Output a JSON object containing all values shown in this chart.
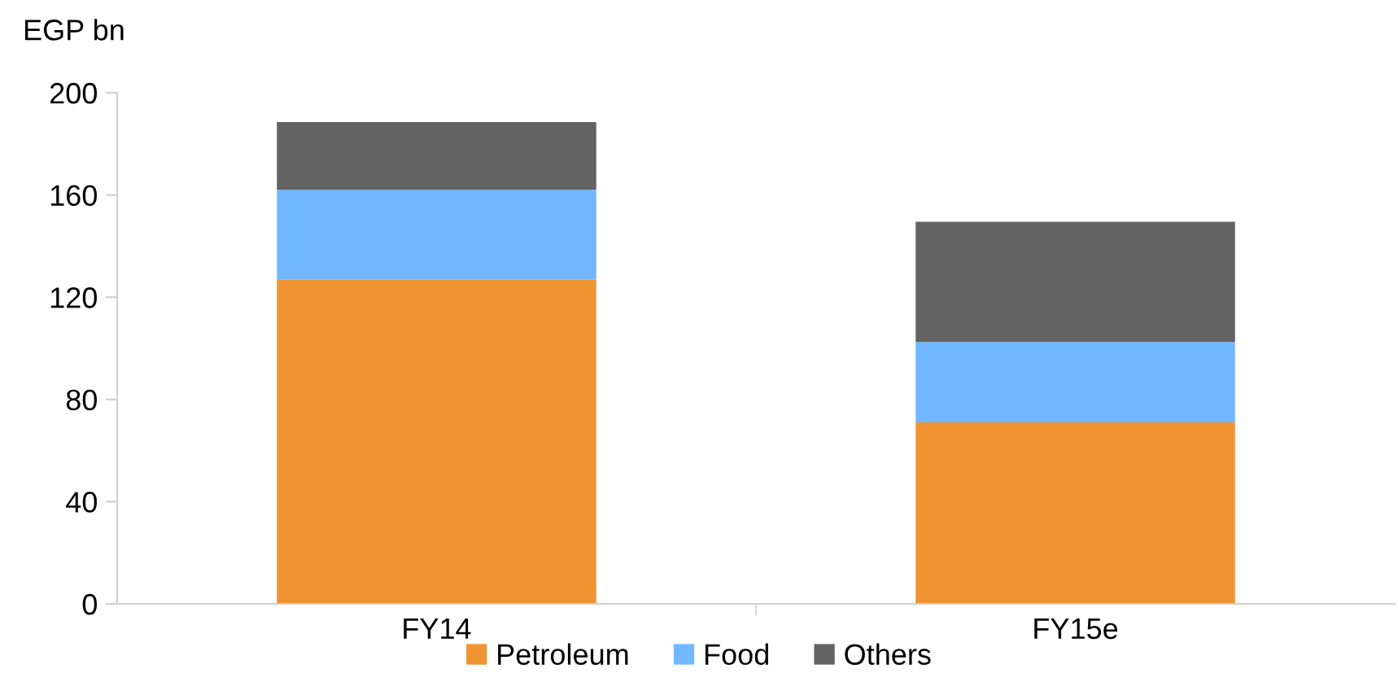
{
  "chart_data": {
    "type": "bar",
    "stacked": true,
    "ylabel": "EGP bn",
    "categories": [
      "FY14",
      "FY15e"
    ],
    "series": [
      {
        "name": "Petroleum",
        "color": "#f09433",
        "values": [
          127,
          71
        ]
      },
      {
        "name": "Food",
        "color": "#71b7ff",
        "values": [
          35,
          31.5
        ]
      },
      {
        "name": "Others",
        "color": "#636363",
        "values": [
          26.5,
          47
        ]
      }
    ],
    "ylim": [
      0,
      200
    ],
    "yticks": [
      0,
      40,
      80,
      120,
      160,
      200
    ],
    "grid": false,
    "legend": "bottom"
  }
}
